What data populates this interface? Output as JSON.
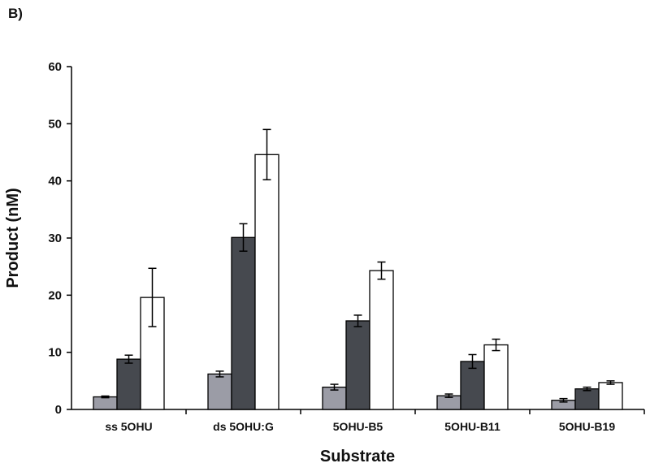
{
  "panel_label": "B)",
  "chart_data": {
    "type": "bar",
    "title": "",
    "xlabel": "Substrate",
    "ylabel": "Product (nM)",
    "ylim": [
      0,
      60
    ],
    "yticks": [
      0,
      10,
      20,
      30,
      40,
      50,
      60
    ],
    "categories": [
      "ss 5OHU",
      "ds 5OHU:G",
      "5OHU-B5",
      "5OHU-B11",
      "5OHU-B19"
    ],
    "grid": false,
    "legend": "none",
    "series": [
      {
        "color": "#9b9ca6",
        "values": [
          2.2,
          6.2,
          3.9,
          2.4,
          1.6
        ],
        "errors": [
          0.15,
          0.5,
          0.5,
          0.3,
          0.3
        ]
      },
      {
        "color": "#46494f",
        "values": [
          8.8,
          30.1,
          15.5,
          8.4,
          3.6
        ],
        "errors": [
          0.7,
          2.4,
          1.0,
          1.2,
          0.3
        ]
      },
      {
        "color": "#ffffff",
        "values": [
          19.6,
          44.6,
          24.3,
          11.3,
          4.7
        ],
        "errors": [
          5.1,
          4.4,
          1.5,
          1.0,
          0.3
        ]
      }
    ]
  }
}
